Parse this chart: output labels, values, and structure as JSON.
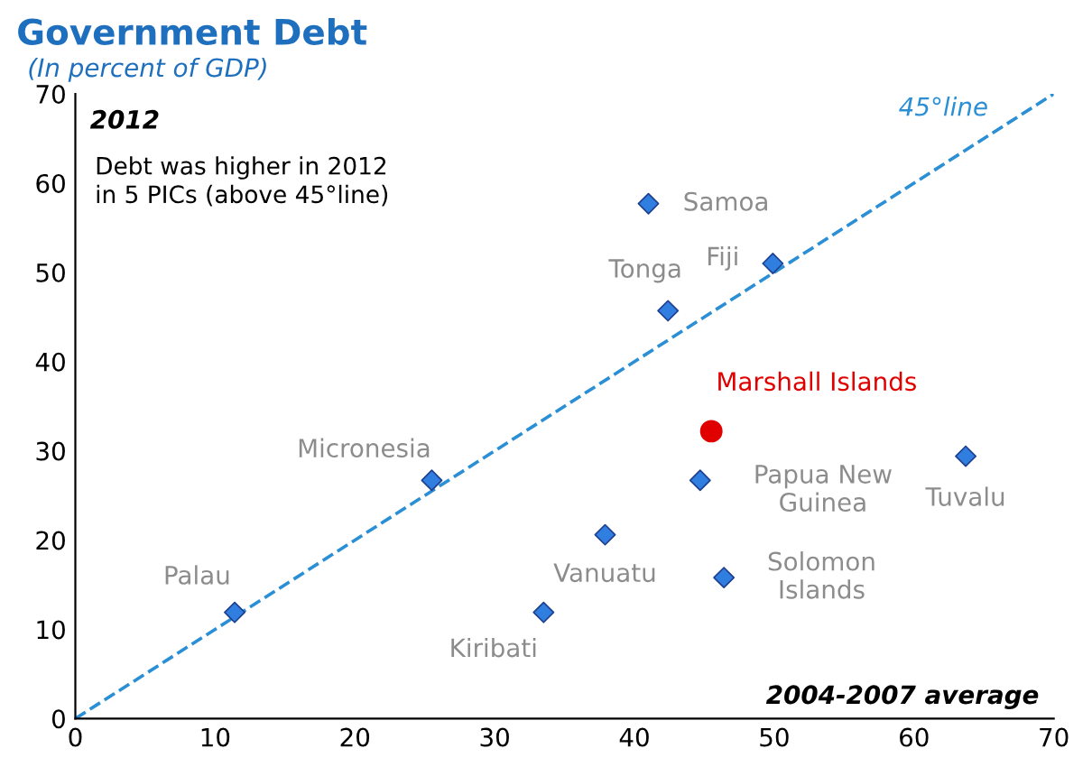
{
  "chart_data": {
    "type": "scatter",
    "title": "Government Debt",
    "subtitle": "(In percent of GDP)",
    "xlabel": "2004-2007 average",
    "ylabel": "2012",
    "xlim": [
      0,
      70
    ],
    "ylim": [
      0,
      70
    ],
    "xticks": [
      0,
      10,
      20,
      30,
      40,
      50,
      60,
      70
    ],
    "yticks": [
      0,
      10,
      20,
      30,
      40,
      50,
      60,
      70
    ],
    "grid": false,
    "series": [
      {
        "type": "line",
        "color": "#2b8fd6",
        "line_style": "dashed",
        "marker": "none",
        "x": [
          0,
          70
        ],
        "values": [
          0,
          70
        ]
      },
      {
        "color": "#2f7ee0",
        "marker": "diamond",
        "x": [
          11.4,
          25.5,
          33.5,
          37.9,
          41.0,
          42.4,
          44.7,
          49.9,
          46.4,
          63.7
        ],
        "values": [
          11.9,
          26.7,
          11.9,
          20.6,
          57.7,
          45.7,
          26.7,
          51.0,
          15.8,
          29.4
        ]
      },
      {
        "name": "Marshall Islands",
        "color": "#e00000",
        "marker": "circle",
        "x": [
          45.5
        ],
        "values": [
          32.2
        ]
      }
    ],
    "annotations": [
      {
        "text": "Palau",
        "x": 11.4,
        "y": 11.9
      },
      {
        "text": "Micronesia",
        "x": 25.5,
        "y": 26.7
      },
      {
        "text": "Kiribati",
        "x": 33.5,
        "y": 11.9
      },
      {
        "text": "Vanuatu",
        "x": 37.9,
        "y": 20.6
      },
      {
        "text": "Samoa",
        "x": 41.0,
        "y": 57.7
      },
      {
        "text": "Tonga",
        "x": 42.4,
        "y": 45.7
      },
      {
        "text": "Papua New\nGuinea",
        "x": 44.7,
        "y": 26.7
      },
      {
        "text": "Fiji",
        "x": 49.9,
        "y": 51.0
      },
      {
        "text": "Solomon\nIslands",
        "x": 46.4,
        "y": 15.8
      },
      {
        "text": "Tuvalu",
        "x": 63.7,
        "y": 29.4
      },
      {
        "text": "45°line",
        "x": 63,
        "y": 63
      },
      "Debt was higher in 2012\nin 5 PICs (above 45°line)"
    ]
  }
}
